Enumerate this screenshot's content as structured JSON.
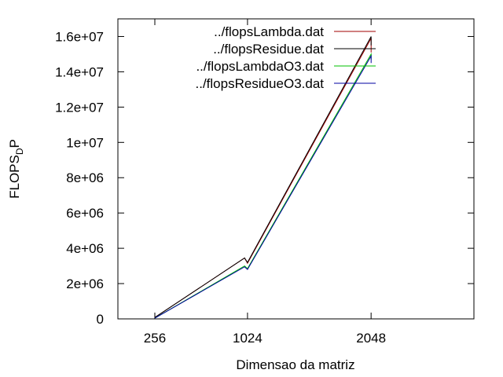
{
  "chart_data": {
    "type": "line",
    "xlabel": "Dimensao da matriz",
    "ylabel_main": "FLOPS",
    "ylabel_sub": "D",
    "ylabel_tail": "P",
    "x_ticks": [
      "256",
      "1024",
      "2048"
    ],
    "y_ticks": [
      "0",
      "2e+06",
      "4e+06",
      "6e+06",
      "8e+06",
      "1e+07",
      "1.2e+07",
      "1.4e+07",
      "1.6e+07"
    ],
    "xlim": [
      -50,
      2900
    ],
    "ylim": [
      0,
      17000000
    ],
    "legend_position": "top-right",
    "series": [
      {
        "name": "../flopsLambda.dat",
        "color": "#a00000",
        "points": [
          [
            256,
            80000
          ],
          [
            1000,
            3450000
          ],
          [
            1024,
            3150000
          ],
          [
            2048,
            15900000
          ],
          [
            2048,
            15100000
          ]
        ]
      },
      {
        "name": "../flopsResidue.dat",
        "color": "#000000",
        "points": [
          [
            256,
            80000
          ],
          [
            1000,
            3450000
          ],
          [
            1024,
            3200000
          ],
          [
            2048,
            16000000
          ],
          [
            2048,
            15500000
          ]
        ]
      },
      {
        "name": "../flopsLambdaO3.dat",
        "color": "#00c000",
        "points": [
          [
            256,
            40000
          ],
          [
            1000,
            3000000
          ],
          [
            1024,
            2850000
          ],
          [
            2048,
            15000000
          ],
          [
            2048,
            14700000
          ]
        ]
      },
      {
        "name": "../flopsResidueO3.dat",
        "color": "#0000a0",
        "points": [
          [
            256,
            40000
          ],
          [
            1000,
            2950000
          ],
          [
            1024,
            2800000
          ],
          [
            2048,
            14900000
          ],
          [
            2048,
            14500000
          ]
        ]
      }
    ]
  }
}
